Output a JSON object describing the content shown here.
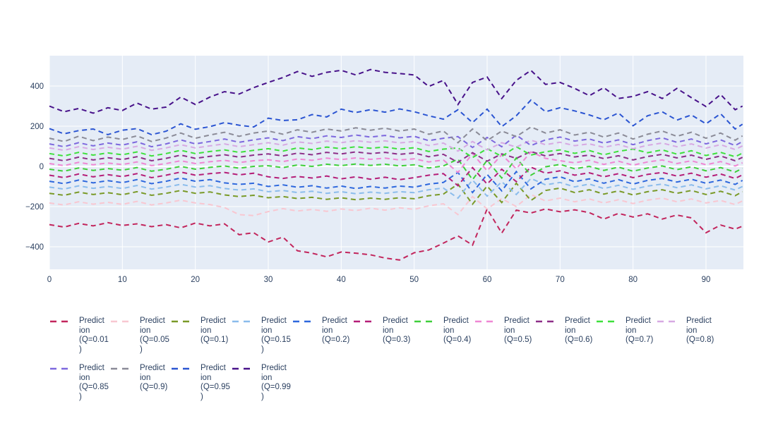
{
  "figure": {
    "title": "",
    "colors": {
      "plot_background": "#e5ecf6",
      "grid": "#ffffff",
      "axis_text": "#2a3f5f",
      "legend_text": "#2a3f5f",
      "page_background": "#ffffff"
    }
  },
  "chart_data": {
    "type": "line",
    "title": "",
    "xlabel": "",
    "ylabel": "",
    "grid": true,
    "legend_position": "bottom",
    "line_style": "dashed",
    "x_range": [
      0,
      95.1
    ],
    "y_range": [
      -512,
      551
    ],
    "x_ticks": [
      {
        "v": 0,
        "label": "0"
      },
      {
        "v": 10,
        "label": "10"
      },
      {
        "v": 20,
        "label": "20"
      },
      {
        "v": 30,
        "label": "30"
      },
      {
        "v": 40,
        "label": "40"
      },
      {
        "v": 50,
        "label": "50"
      },
      {
        "v": 60,
        "label": "60"
      },
      {
        "v": 70,
        "label": "70"
      },
      {
        "v": 80,
        "label": "80"
      },
      {
        "v": 90,
        "label": "90"
      }
    ],
    "y_ticks": [
      {
        "v": -400,
        "label": "−400"
      },
      {
        "v": -200,
        "label": "−200"
      },
      {
        "v": 0,
        "label": "0"
      },
      {
        "v": 200,
        "label": "200"
      },
      {
        "v": 400,
        "label": "400"
      }
    ],
    "x": [
      0,
      2,
      4,
      6,
      8,
      10,
      12,
      14,
      16,
      18,
      20,
      22,
      24,
      26,
      28,
      30,
      32,
      34,
      36,
      38,
      40,
      42,
      44,
      46,
      48,
      50,
      52,
      54,
      56,
      58,
      60,
      62,
      64,
      66,
      68,
      70,
      72,
      74,
      76,
      78,
      80,
      82,
      84,
      86,
      88,
      90,
      92,
      94,
      95
    ],
    "series": [
      {
        "name": "Prediction (Q=0.01)",
        "color": "#C2255C",
        "values": [
          -290,
          -302,
          -284,
          -296,
          -280,
          -294,
          -286,
          -300,
          -290,
          -306,
          -282,
          -296,
          -286,
          -340,
          -330,
          -376,
          -352,
          -420,
          -432,
          -450,
          -426,
          -432,
          -440,
          -456,
          -466,
          -430,
          -416,
          -382,
          -346,
          -392,
          -212,
          -332,
          -218,
          -232,
          -212,
          -226,
          -216,
          -230,
          -262,
          -234,
          -252,
          -236,
          -262,
          -242,
          -256,
          -330,
          -292,
          -312,
          -298
        ]
      },
      {
        "name": "Prediction (Q=0.05)",
        "color": "#F8C7D1",
        "values": [
          -182,
          -192,
          -176,
          -188,
          -179,
          -189,
          -174,
          -192,
          -182,
          -168,
          -182,
          -190,
          -205,
          -240,
          -245,
          -225,
          -210,
          -222,
          -214,
          -224,
          -212,
          -220,
          -208,
          -218,
          -206,
          -214,
          -196,
          -186,
          -240,
          -150,
          -212,
          -160,
          -200,
          -140,
          -172,
          -158,
          -176,
          -162,
          -182,
          -166,
          -185,
          -168,
          -158,
          -176,
          -162,
          -182,
          -170,
          -190,
          -172
        ]
      },
      {
        "name": "Prediction (Q=0.1)",
        "color": "#7A9A28",
        "values": [
          -134,
          -144,
          -128,
          -140,
          -131,
          -141,
          -126,
          -144,
          -134,
          -120,
          -134,
          -127,
          -142,
          -150,
          -144,
          -156,
          -150,
          -160,
          -154,
          -164,
          -156,
          -166,
          -158,
          -164,
          -156,
          -161,
          -146,
          -138,
          -88,
          -188,
          -98,
          -180,
          -84,
          -170,
          -120,
          -108,
          -130,
          -116,
          -138,
          -122,
          -142,
          -126,
          -116,
          -134,
          -120,
          -140,
          -124,
          -146,
          -126
        ]
      },
      {
        "name": "Prediction (Q=0.15)",
        "color": "#8BBCEC",
        "values": [
          -103,
          -113,
          -97,
          -109,
          -100,
          -110,
          -95,
          -113,
          -103,
          -89,
          -103,
          -96,
          -110,
          -118,
          -112,
          -126,
          -120,
          -130,
          -124,
          -134,
          -126,
          -136,
          -128,
          -134,
          -126,
          -131,
          -116,
          -108,
          -158,
          -68,
          -148,
          -76,
          -140,
          -60,
          -92,
          -80,
          -102,
          -88,
          -110,
          -94,
          -114,
          -98,
          -88,
          -106,
          -92,
          -112,
          -96,
          -118,
          -100
        ]
      },
      {
        "name": "Prediction (Q=0.2)",
        "color": "#2E68DD",
        "values": [
          -74,
          -86,
          -68,
          -82,
          -71,
          -81,
          -66,
          -86,
          -74,
          -58,
          -74,
          -66,
          -82,
          -90,
          -84,
          -100,
          -92,
          -104,
          -96,
          -108,
          -98,
          -110,
          -100,
          -108,
          -98,
          -104,
          -88,
          -80,
          -30,
          -130,
          -40,
          -122,
          -26,
          -112,
          -64,
          -52,
          -76,
          -62,
          -84,
          -66,
          -88,
          -70,
          -60,
          -78,
          -64,
          -84,
          -68,
          -90,
          -70
        ]
      },
      {
        "name": "Prediction (Q=0.3)",
        "color": "#B51E78",
        "values": [
          -44,
          -56,
          -38,
          -52,
          -41,
          -51,
          -36,
          -56,
          -44,
          -28,
          -44,
          -36,
          -30,
          -42,
          -34,
          -52,
          -60,
          -50,
          -58,
          -48,
          -62,
          -52,
          -64,
          -54,
          -66,
          -56,
          -44,
          -36,
          -96,
          -6,
          -88,
          -14,
          -76,
          -4,
          -34,
          -22,
          -44,
          -32,
          -52,
          -36,
          -56,
          -40,
          -30,
          -48,
          -34,
          -54,
          -38,
          -60,
          -42
        ]
      },
      {
        "name": "Prediction (Q=0.4)",
        "color": "#3FCF3A",
        "values": [
          -14,
          -24,
          -8,
          -20,
          -11,
          -19,
          -6,
          -24,
          -14,
          0,
          -14,
          -5,
          2,
          -9,
          0,
          3,
          -6,
          7,
          0,
          11,
          4,
          12,
          5,
          11,
          2,
          8,
          -8,
          2,
          36,
          -66,
          30,
          -58,
          42,
          -44,
          -2,
          10,
          -12,
          0,
          -20,
          -4,
          -24,
          -8,
          2,
          -16,
          -2,
          -22,
          -6,
          -28,
          -10
        ]
      },
      {
        "name": "Prediction (Q=0.5)",
        "color": "#EF87D4",
        "values": [
          14,
          4,
          20,
          8,
          17,
          9,
          22,
          4,
          14,
          28,
          14,
          23,
          30,
          19,
          28,
          33,
          24,
          37,
          30,
          41,
          34,
          42,
          35,
          41,
          32,
          38,
          22,
          32,
          -30,
          64,
          -22,
          58,
          -12,
          72,
          40,
          28,
          18,
          30,
          10,
          26,
          6,
          22,
          32,
          14,
          28,
          8,
          24,
          2,
          18
        ]
      },
      {
        "name": "Prediction (Q=0.6)",
        "color": "#8D2E88",
        "values": [
          40,
          28,
          46,
          32,
          43,
          34,
          48,
          28,
          40,
          56,
          40,
          50,
          58,
          46,
          56,
          62,
          52,
          66,
          58,
          70,
          62,
          72,
          64,
          70,
          60,
          67,
          48,
          60,
          20,
          68,
          26,
          62,
          40,
          74,
          52,
          64,
          47,
          56,
          39,
          53,
          32,
          49,
          60,
          42,
          56,
          35,
          52,
          28,
          45
        ]
      },
      {
        "name": "Prediction (Q=0.7)",
        "color": "#3EE03C",
        "values": [
          64,
          52,
          70,
          56,
          67,
          58,
          72,
          52,
          64,
          80,
          64,
          74,
          82,
          70,
          80,
          88,
          76,
          92,
          84,
          96,
          88,
          98,
          90,
          96,
          86,
          93,
          74,
          86,
          92,
          44,
          88,
          50,
          98,
          56,
          73,
          82,
          65,
          79,
          58,
          75,
          86,
          68,
          82,
          61,
          78,
          54,
          70,
          48,
          66
        ]
      },
      {
        "name": "Prediction (Q=0.8)",
        "color": "#D7A9E3",
        "values": [
          92,
          80,
          98,
          84,
          95,
          86,
          100,
          80,
          92,
          108,
          92,
          102,
          112,
          98,
          108,
          118,
          106,
          122,
          114,
          126,
          118,
          128,
          120,
          127,
          117,
          124,
          104,
          116,
          76,
          124,
          82,
          118,
          96,
          130,
          108,
          120,
          103,
          112,
          95,
          109,
          88,
          105,
          116,
          98,
          112,
          91,
          108,
          84,
          102
        ]
      },
      {
        "name": "Prediction (Q=0.85)",
        "color": "#7D68DE",
        "values": [
          112,
          98,
          118,
          102,
          116,
          106,
          122,
          98,
          112,
          132,
          112,
          124,
          136,
          120,
          132,
          142,
          128,
          148,
          138,
          152,
          144,
          156,
          146,
          154,
          142,
          150,
          128,
          140,
          148,
          94,
          144,
          98,
          156,
          104,
          132,
          146,
          126,
          136,
          116,
          132,
          108,
          128,
          142,
          120,
          136,
          112,
          132,
          104,
          124
        ]
      },
      {
        "name": "Prediction (Q=0.9)",
        "color": "#8B8B97",
        "values": [
          140,
          124,
          150,
          128,
          146,
          134,
          152,
          124,
          141,
          166,
          140,
          156,
          170,
          150,
          166,
          176,
          160,
          182,
          170,
          186,
          176,
          192,
          180,
          190,
          176,
          186,
          160,
          176,
          118,
          186,
          128,
          176,
          148,
          196,
          166,
          182,
          156,
          170,
          146,
          166,
          136,
          160,
          176,
          150,
          170,
          140,
          166,
          130,
          152
        ]
      },
      {
        "name": "Prediction (Q=0.95)",
        "color": "#2B55D2",
        "values": [
          188,
          162,
          178,
          186,
          158,
          180,
          188,
          158,
          175,
          212,
          185,
          198,
          218,
          205,
          196,
          240,
          228,
          232,
          258,
          246,
          285,
          268,
          282,
          270,
          286,
          272,
          252,
          235,
          282,
          218,
          285,
          198,
          252,
          330,
          272,
          292,
          276,
          256,
          232,
          266,
          202,
          252,
          272,
          230,
          256,
          212,
          262,
          186,
          210
        ]
      },
      {
        "name": "Prediction (Q=0.99)",
        "color": "#48128A",
        "values": [
          300,
          272,
          288,
          265,
          292,
          278,
          315,
          285,
          295,
          345,
          308,
          345,
          372,
          360,
          392,
          418,
          442,
          472,
          448,
          468,
          478,
          455,
          482,
          468,
          462,
          455,
          398,
          428,
          308,
          418,
          445,
          338,
          428,
          478,
          408,
          418,
          388,
          352,
          392,
          338,
          348,
          372,
          338,
          388,
          342,
          298,
          358,
          282,
          300
        ]
      }
    ]
  },
  "legend": {
    "items_per_row": 11
  }
}
